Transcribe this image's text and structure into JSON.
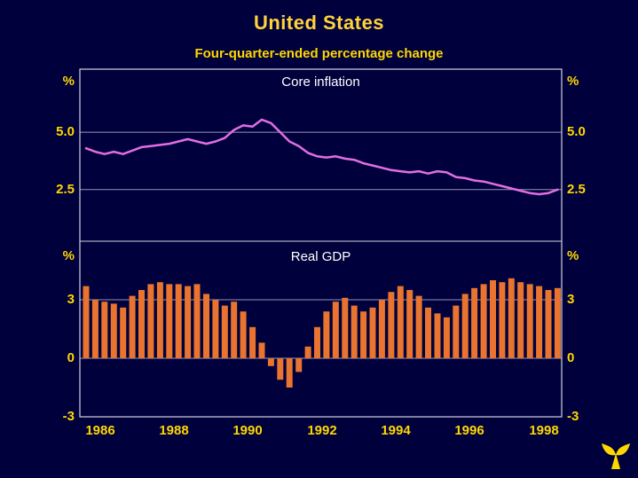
{
  "header": {
    "title": "United States",
    "subtitle": "Four-quarter-ended percentage change"
  },
  "colors": {
    "background": "#00003c",
    "title_text": "#ffd33a",
    "axis_text": "#ffd700",
    "panel_title_text": "#ffffff",
    "line": "#e26ee2",
    "bar": "#e8742f",
    "grid": "#9595b5",
    "border": "#d2d2e0",
    "logo": "#ffd700"
  },
  "x_axis": {
    "labels": [
      "1986",
      "1988",
      "1990",
      "1992",
      "1994",
      "1996",
      "1998"
    ]
  },
  "chart_data": [
    {
      "type": "line",
      "title": "Core inflation",
      "unit_label": "%",
      "yticks": [
        "5.0",
        "2.5"
      ],
      "ytick_values": [
        5.0,
        2.5
      ],
      "ylim": [
        0.25,
        7.75
      ],
      "x_start": "1986Q1",
      "frequency": "quarterly",
      "legend": "none",
      "grid": "horizontal",
      "values": [
        4.3,
        4.15,
        4.05,
        4.15,
        4.05,
        4.2,
        4.35,
        4.4,
        4.45,
        4.5,
        4.6,
        4.7,
        4.6,
        4.5,
        4.6,
        4.75,
        5.1,
        5.3,
        5.25,
        5.55,
        5.4,
        5.0,
        4.6,
        4.4,
        4.1,
        3.95,
        3.9,
        3.95,
        3.85,
        3.8,
        3.65,
        3.55,
        3.45,
        3.35,
        3.3,
        3.25,
        3.3,
        3.2,
        3.3,
        3.25,
        3.05,
        3.0,
        2.9,
        2.85,
        2.75,
        2.65,
        2.55,
        2.45,
        2.35,
        2.3,
        2.35,
        2.5
      ]
    },
    {
      "type": "bar",
      "title": "Real GDP",
      "unit_label": "%",
      "yticks": [
        "3",
        "0",
        "-3"
      ],
      "ytick_values": [
        3,
        0,
        -3
      ],
      "ylim": [
        -3,
        6
      ],
      "x_start": "1986Q1",
      "frequency": "quarterly",
      "legend": "none",
      "grid": "horizontal",
      "values": [
        3.7,
        3.0,
        2.9,
        2.8,
        2.6,
        3.2,
        3.5,
        3.8,
        3.9,
        3.8,
        3.8,
        3.7,
        3.8,
        3.3,
        3.0,
        2.7,
        2.9,
        2.4,
        1.6,
        0.8,
        -0.4,
        -1.1,
        -1.5,
        -0.7,
        0.6,
        1.6,
        2.4,
        2.9,
        3.1,
        2.7,
        2.4,
        2.6,
        3.0,
        3.4,
        3.7,
        3.5,
        3.2,
        2.6,
        2.3,
        2.1,
        2.7,
        3.3,
        3.6,
        3.8,
        4.0,
        3.9,
        4.1,
        3.9,
        3.8,
        3.7,
        3.5,
        3.6
      ]
    }
  ],
  "logo": {
    "name": "publisher-emblem"
  }
}
